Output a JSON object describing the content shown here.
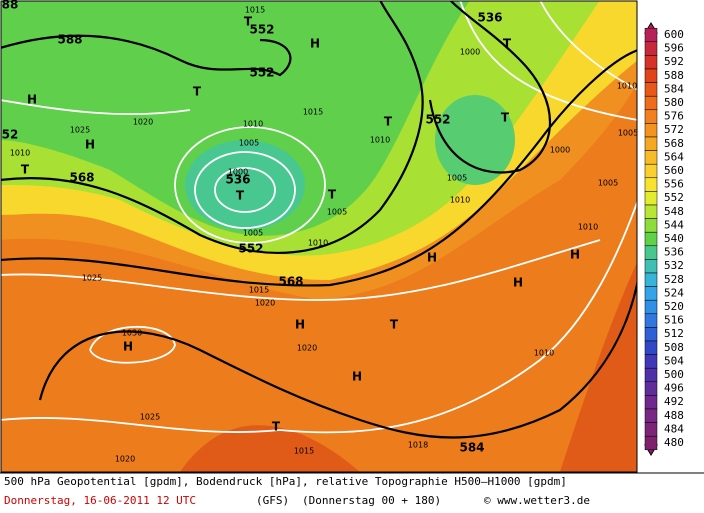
{
  "map": {
    "labels": [
      "88",
      "1015",
      "T",
      "552",
      "588",
      "H",
      "536",
      "T",
      "1000",
      "552",
      "T",
      "1010",
      "552",
      "T",
      "1005",
      "1025",
      "1020",
      "1015",
      "1010",
      "T",
      "1010",
      "1005",
      "H",
      "52",
      "H",
      "1010",
      "T",
      "568",
      "1000",
      "1000",
      "536",
      "T",
      "1005",
      "1010",
      "1005",
      "T",
      "1005",
      "1005",
      "552",
      "1010",
      "1010",
      "H",
      "H",
      "1025",
      "568",
      "1015",
      "1020",
      "H",
      "H",
      "T",
      "1030",
      "H",
      "1020",
      "1010",
      "H",
      "1025",
      "T",
      "1015",
      "1018",
      "584",
      "1020"
    ]
  },
  "legend": {
    "levels": [
      600,
      596,
      592,
      588,
      584,
      580,
      576,
      572,
      568,
      564,
      560,
      556,
      552,
      548,
      544,
      540,
      536,
      532,
      528,
      524,
      520,
      516,
      512,
      508,
      504,
      500,
      496,
      492,
      488,
      484,
      480
    ],
    "colors": [
      "#b8205a",
      "#c8283c",
      "#d83228",
      "#e04418",
      "#e85818",
      "#ee6c1a",
      "#f2801c",
      "#f4941e",
      "#f6a822",
      "#f8bc26",
      "#fad02c",
      "#f8e42e",
      "#e4ec30",
      "#b8e634",
      "#8cdc3c",
      "#60d248",
      "#48c88c",
      "#40c0b4",
      "#38b4d8",
      "#34a4e8",
      "#3090e8",
      "#3078e0",
      "#3060d8",
      "#3048c8",
      "#4038b8",
      "#5030a8",
      "#602c9c",
      "#702890",
      "#782884",
      "#7c2478",
      "#80206c"
    ]
  },
  "footer": {
    "line1": "500 hPa Geopotential [gpdm], Bodendruck [hPa], relative Topographie H500–H1000 [gpdm]",
    "date": "Donnerstag, 16-06-2011  12 UTC",
    "model": "(GFS)",
    "run": "(Donnerstag 00 + 180)",
    "credit": "© www.wetter3.de"
  }
}
